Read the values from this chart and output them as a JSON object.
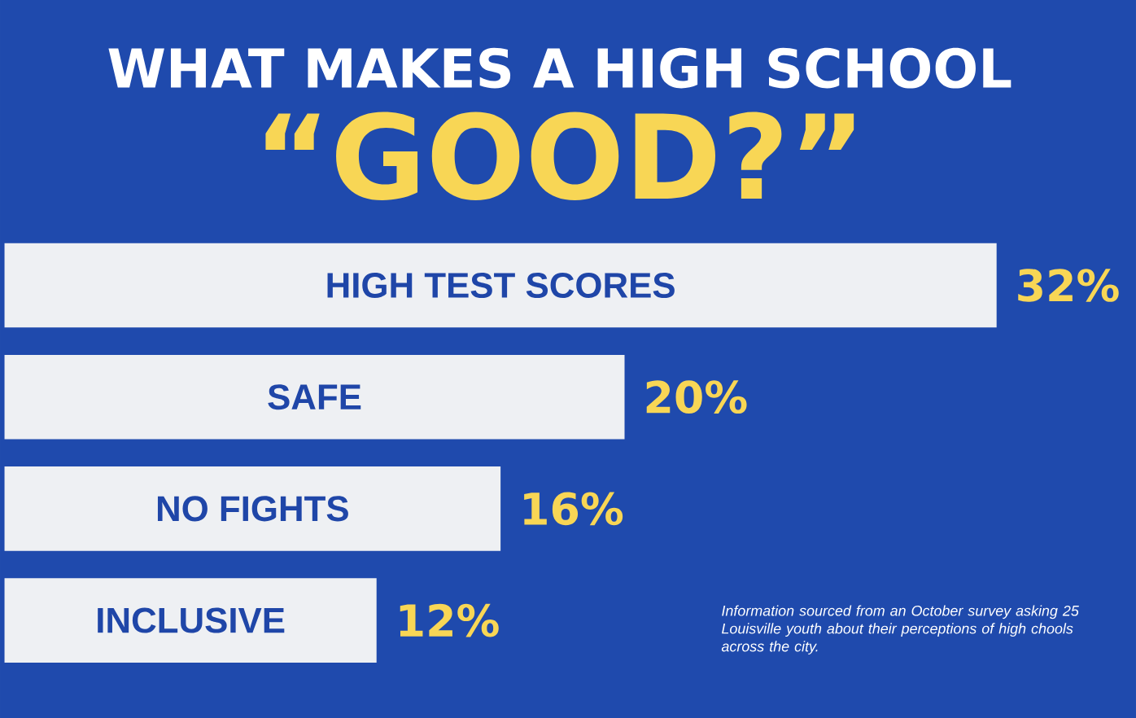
{
  "chart_data": {
    "type": "bar",
    "orientation": "horizontal",
    "title": "WHAT MAKES A HIGH SCHOOL",
    "subtitle": "“GOOD?”",
    "categories": [
      "HIGH TEST SCORES",
      "SAFE",
      "NO FIGHTS",
      "INCLUSIVE"
    ],
    "values": [
      32,
      20,
      16,
      12
    ],
    "value_labels": [
      "32%",
      "20%",
      "16%",
      "12%"
    ],
    "color": "#eef0f3",
    "annotations": [
      "Information sourced from an October survey asking 25 Louisville youth about their perceptions of high chools across the city."
    ]
  }
}
